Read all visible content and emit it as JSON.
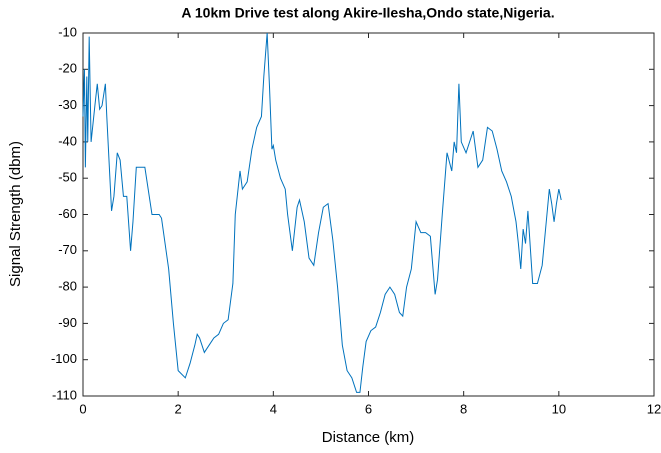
{
  "chart_data": {
    "type": "line",
    "title": "A 10km Drive test along Akire-Ilesha,Ondo state,Nigeria.",
    "x_label": "Distance (km)",
    "y_label": "Signal Strength (dbm)",
    "xlim": [
      0,
      12
    ],
    "xticks": [
      0,
      2,
      4,
      6,
      8,
      10,
      12
    ],
    "ylim": [
      -110,
      -10
    ],
    "yticks": [
      -110,
      -100,
      -90,
      -80,
      -70,
      -60,
      -50,
      -40,
      -30,
      -20,
      -10
    ],
    "grid": false,
    "series": [
      {
        "color": "#0072bd",
        "x": [
          0,
          0.03,
          0.05,
          0.08,
          0.1,
          0.13,
          0.17,
          0.25,
          0.3,
          0.35,
          0.4,
          0.47,
          0.5,
          0.6,
          0.65,
          0.72,
          0.78,
          0.85,
          0.92,
          1.0,
          1.05,
          1.12,
          1.3,
          1.45,
          1.6,
          1.65,
          1.8,
          1.9,
          2.0,
          2.15,
          2.25,
          2.35,
          2.4,
          2.45,
          2.55,
          2.65,
          2.75,
          2.85,
          2.95,
          3.05,
          3.15,
          3.2,
          3.3,
          3.35,
          3.45,
          3.55,
          3.65,
          3.75,
          3.8,
          3.87,
          3.92,
          3.97,
          4.0,
          4.05,
          4.15,
          4.25,
          4.3,
          4.4,
          4.5,
          4.55,
          4.65,
          4.75,
          4.85,
          4.95,
          5.05,
          5.15,
          5.25,
          5.35,
          5.45,
          5.55,
          5.65,
          5.75,
          5.82,
          5.88,
          5.95,
          6.05,
          6.15,
          6.25,
          6.35,
          6.45,
          6.55,
          6.65,
          6.72,
          6.8,
          6.9,
          7.0,
          7.1,
          7.2,
          7.3,
          7.4,
          7.45,
          7.55,
          7.65,
          7.75,
          7.8,
          7.85,
          7.9,
          7.95,
          8.05,
          8.15,
          8.2,
          8.3,
          8.4,
          8.5,
          8.6,
          8.7,
          8.8,
          8.9,
          9.0,
          9.1,
          9.15,
          9.2,
          9.25,
          9.3,
          9.35,
          9.45,
          9.55,
          9.65,
          9.75,
          9.8,
          9.85,
          9.9,
          9.95,
          10.0,
          10.05
        ],
        "values": [
          -33,
          -20,
          -47,
          -22,
          -40,
          -11,
          -40,
          -30,
          -24,
          -31,
          -30,
          -24,
          -33,
          -59,
          -55,
          -43,
          -45,
          -55,
          -55,
          -70,
          -62,
          -47,
          -47,
          -60,
          -60,
          -61,
          -75,
          -90,
          -103,
          -105,
          -101,
          -96,
          -93,
          -94,
          -98,
          -96,
          -94,
          -93,
          -90,
          -89,
          -79,
          -60,
          -48,
          -53,
          -51,
          -42,
          -36,
          -33,
          -22,
          -10,
          -25,
          -42,
          -41,
          -45,
          -50,
          -53,
          -60,
          -70,
          -58,
          -56,
          -62,
          -72,
          -74,
          -65,
          -58,
          -57,
          -67,
          -80,
          -96,
          -103,
          -105,
          -109,
          -109,
          -102,
          -95,
          -92,
          -91,
          -87,
          -82,
          -80,
          -82,
          -87,
          -88,
          -80,
          -75,
          -62,
          -65,
          -65,
          -66,
          -82,
          -78,
          -60,
          -43,
          -48,
          -40,
          -43,
          -24,
          -40,
          -43,
          -39,
          -37,
          -47,
          -45,
          -36,
          -37,
          -42,
          -48,
          -51,
          -55,
          -62,
          -68,
          -75,
          -64,
          -68,
          -59,
          -79,
          -79,
          -74,
          -60,
          -53,
          -57,
          -62,
          -57,
          -53,
          -56
        ]
      }
    ]
  }
}
